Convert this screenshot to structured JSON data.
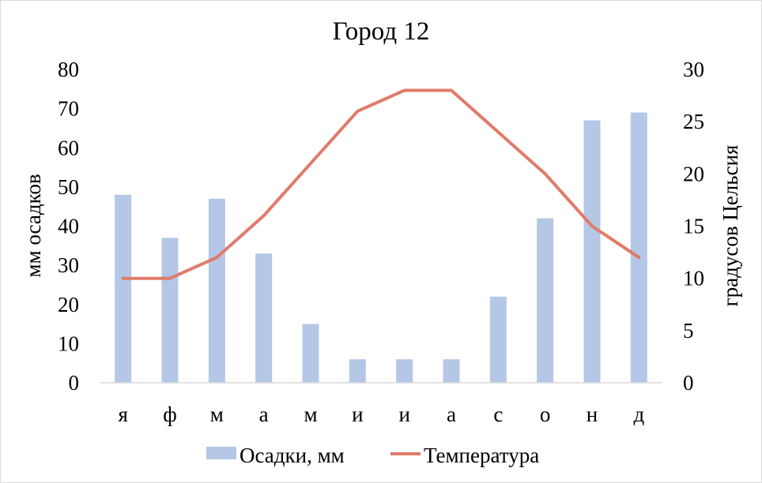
{
  "chart_data": {
    "type": "bar+line",
    "title": "Город 12",
    "categories": [
      "я",
      "ф",
      "м",
      "а",
      "м",
      "и",
      "и",
      "а",
      "с",
      "о",
      "н",
      "д"
    ],
    "series": [
      {
        "name": "Осадки, мм",
        "type": "bar",
        "axis": "left",
        "color": "#b4c7e7",
        "values": [
          48,
          37,
          47,
          33,
          15,
          6,
          6,
          6,
          22,
          42,
          67,
          69
        ]
      },
      {
        "name": "Температура",
        "type": "line",
        "axis": "right",
        "color": "#e07b6a",
        "values": [
          10,
          10,
          12,
          16,
          21,
          26,
          28,
          28,
          24,
          20,
          15,
          12
        ]
      }
    ],
    "ylabel": "мм осадков",
    "y2label": "градусов Цельсия",
    "ylim": [
      0,
      80
    ],
    "y2lim": [
      0,
      30
    ],
    "yticks": [
      "0",
      "10",
      "20",
      "30",
      "40",
      "50",
      "60",
      "70",
      "80"
    ],
    "y2ticks": [
      "0",
      "5",
      "10",
      "15",
      "20",
      "25",
      "30"
    ],
    "grid": false,
    "legend": "bottom"
  }
}
